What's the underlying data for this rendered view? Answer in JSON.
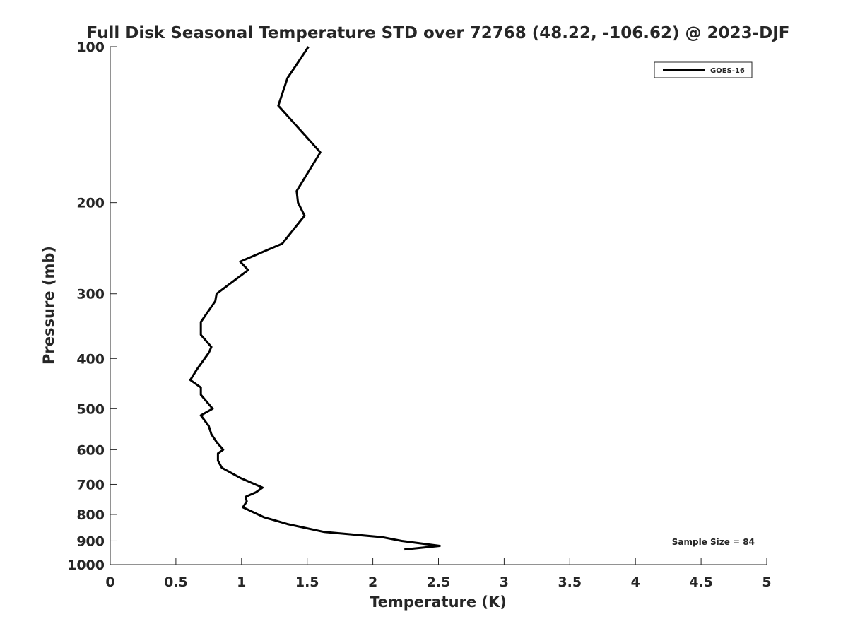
{
  "chart_data": {
    "type": "line",
    "title": "Full Disk Seasonal Temperature STD over 72768 (48.22, -106.62) @ 2023-DJF",
    "xlabel": "Temperature (K)",
    "ylabel": "Pressure (mb)",
    "xlim": [
      0,
      5
    ],
    "ylim": [
      1000,
      100
    ],
    "y_scale": "log",
    "x_ticks": [
      "0",
      "0.5",
      "1",
      "1.5",
      "2",
      "2.5",
      "3",
      "3.5",
      "4",
      "4.5",
      "5"
    ],
    "y_ticks": [
      "100",
      "200",
      "300",
      "400",
      "500",
      "600",
      "700",
      "800",
      "900",
      "1000"
    ],
    "grid": false,
    "legend_position": "top-right",
    "annotation": "Sample Size = 84",
    "colors": {
      "line": "#000000",
      "axis": "#262626"
    },
    "series": [
      {
        "name": "GOES-16",
        "x": [
          1.51,
          1.35,
          1.28,
          1.6,
          1.42,
          1.43,
          1.48,
          1.31,
          0.99,
          1.05,
          0.81,
          0.8,
          0.69,
          0.69,
          0.77,
          0.75,
          0.66,
          0.61,
          0.69,
          0.69,
          0.78,
          0.69,
          0.75,
          0.77,
          0.81,
          0.86,
          0.82,
          0.82,
          0.85,
          0.99,
          1.16,
          1.11,
          1.03,
          1.04,
          1.01,
          1.17,
          1.35,
          1.63,
          2.07,
          2.22,
          2.51,
          2.24
        ],
        "y": [
          100,
          115,
          130,
          160,
          190,
          200,
          212,
          240,
          260,
          270,
          300,
          310,
          340,
          360,
          380,
          390,
          420,
          440,
          455,
          470,
          500,
          515,
          540,
          560,
          580,
          600,
          610,
          630,
          650,
          680,
          710,
          725,
          740,
          755,
          775,
          810,
          835,
          865,
          885,
          900,
          920,
          935
        ]
      }
    ]
  }
}
